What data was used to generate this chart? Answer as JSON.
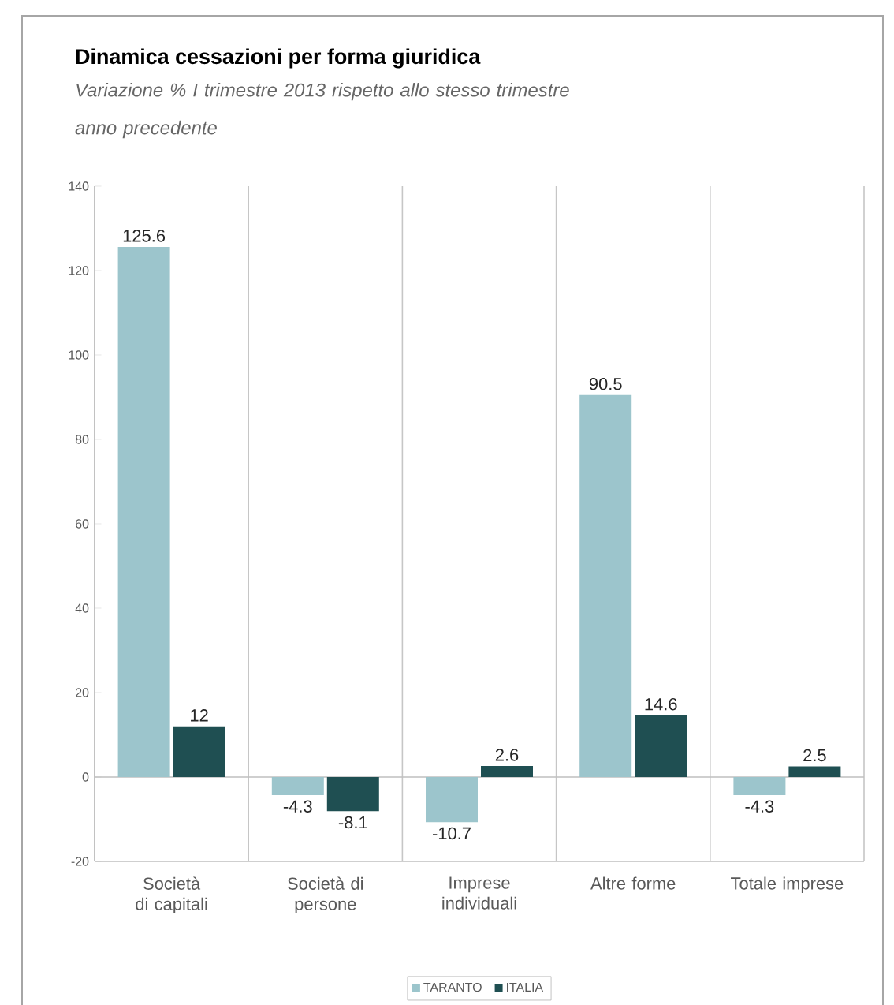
{
  "chart_data": {
    "type": "bar",
    "title": "Dinamica cessazioni per forma giuridica",
    "subtitle": "Variazione % I trimestre 2013 rispetto allo stesso trimestre anno precedente",
    "categories": [
      "Società di capitali",
      "Società di persone",
      "Imprese individuali",
      "Altre forme",
      "Totale imprese"
    ],
    "series": [
      {
        "name": "TARANTO",
        "color": "#9cc5cc",
        "values": [
          125.6,
          -4.3,
          -10.7,
          90.5,
          -4.3
        ]
      },
      {
        "name": "ITALIA",
        "color": "#1f4f52",
        "values": [
          12,
          -8.1,
          2.6,
          14.6,
          2.5
        ]
      }
    ],
    "ylim": [
      -20,
      140
    ],
    "yticks": [
      -20,
      0,
      20,
      40,
      60,
      80,
      100,
      120,
      140
    ],
    "grid": "x",
    "legend": "bottom",
    "data_labels": true
  }
}
